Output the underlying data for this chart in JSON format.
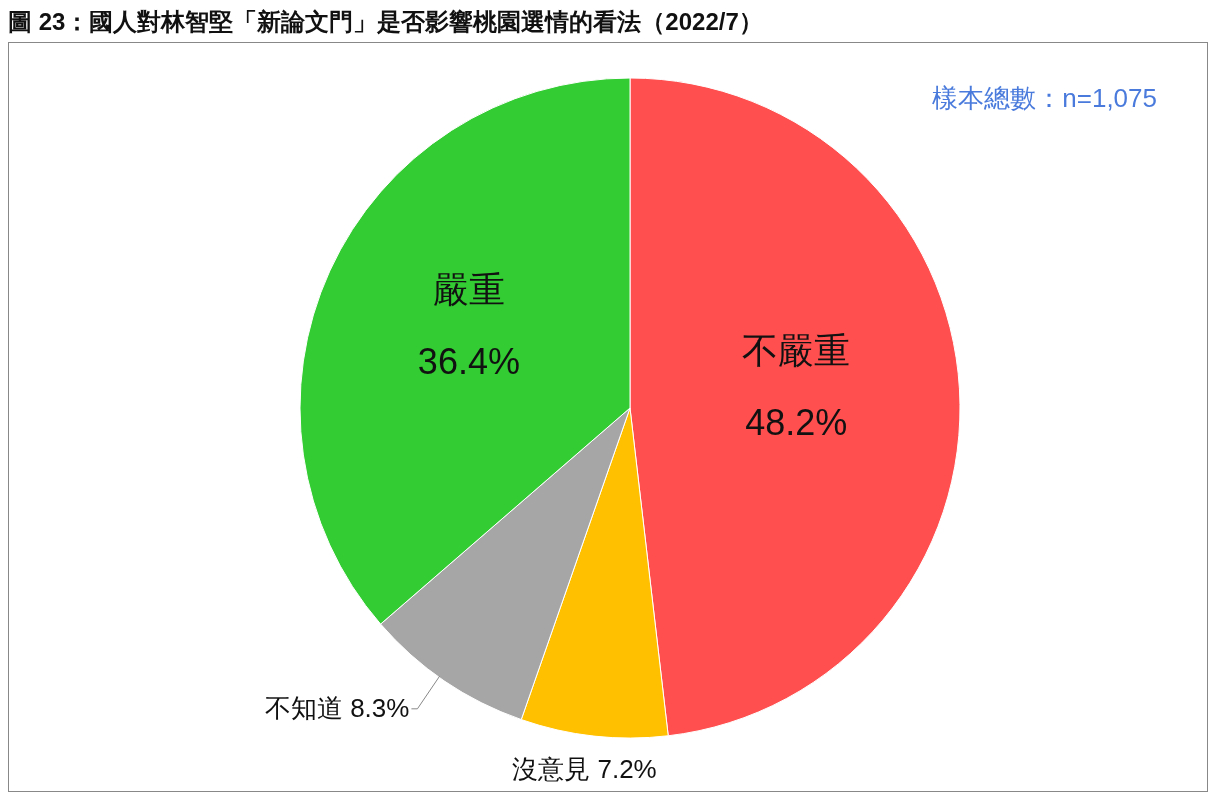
{
  "chart_data": {
    "type": "pie",
    "title": "圖 23：國人對林智堅「新論文門」是否影響桃園選情的看法（2022/7）",
    "categories": [
      "不嚴重",
      "沒意見",
      "不知道",
      "嚴重"
    ],
    "values": [
      48.2,
      7.2,
      8.3,
      36.4
    ],
    "value_labels": [
      "48.2%",
      "7.2%",
      "8.3%",
      "36.4%"
    ],
    "colors": [
      "#ff4f4f",
      "#ffc000",
      "#a6a6a6",
      "#33cc33"
    ],
    "legend": false,
    "annotations": [
      "樣本總數：n=1,075"
    ]
  }
}
